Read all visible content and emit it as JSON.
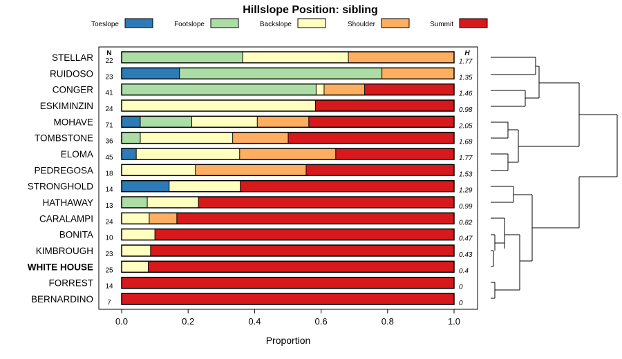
{
  "chart_data": {
    "type": "bar",
    "orientation": "horizontal",
    "stacked": true,
    "title": "Hillslope Position: sibling",
    "xlabel": "Proportion",
    "ylabel": "",
    "xlim": [
      0,
      1
    ],
    "x_ticks": [
      "0.0",
      "0.2",
      "0.4",
      "0.6",
      "0.8",
      "1.0"
    ],
    "legend_position": "top",
    "n_header": "N",
    "h_header": "H",
    "highlighted_category": "WHITE HOUSE",
    "series": [
      {
        "name": "Toeslope",
        "color": "#2c7bb6"
      },
      {
        "name": "Footslope",
        "color": "#abdda4"
      },
      {
        "name": "Backslope",
        "color": "#ffffbf"
      },
      {
        "name": "Shoulder",
        "color": "#fdae61"
      },
      {
        "name": "Summit",
        "color": "#d7191c"
      }
    ],
    "rows": [
      {
        "category": "STELLAR",
        "n": "22",
        "h": "1.77",
        "values": [
          0,
          0.364,
          0.318,
          0.318,
          0
        ]
      },
      {
        "category": "RUIDOSO",
        "n": "23",
        "h": "1.35",
        "values": [
          0.174,
          0.609,
          0,
          0.217,
          0
        ]
      },
      {
        "category": "CONGER",
        "n": "41",
        "h": "1.46",
        "values": [
          0,
          0.585,
          0.024,
          0.122,
          0.269
        ]
      },
      {
        "category": "ESKIMINZIN",
        "n": "24",
        "h": "0.98",
        "values": [
          0,
          0,
          0.583,
          0,
          0.417
        ]
      },
      {
        "category": "MOHAVE",
        "n": "71",
        "h": "2.05",
        "values": [
          0.056,
          0.155,
          0.197,
          0.155,
          0.437
        ]
      },
      {
        "category": "TOMBSTONE",
        "n": "36",
        "h": "1.68",
        "values": [
          0,
          0.056,
          0.278,
          0.167,
          0.5
        ]
      },
      {
        "category": "ELOMA",
        "n": "45",
        "h": "1.77",
        "values": [
          0.044,
          0.0,
          0.311,
          0.289,
          0.356
        ]
      },
      {
        "category": "PEDREGOSA",
        "n": "18",
        "h": "1.53",
        "values": [
          0,
          0,
          0.222,
          0.333,
          0.444
        ]
      },
      {
        "category": "STRONGHOLD",
        "n": "14",
        "h": "1.29",
        "values": [
          0.143,
          0,
          0.214,
          0,
          0.643
        ]
      },
      {
        "category": "HATHAWAY",
        "n": "13",
        "h": "0.99",
        "values": [
          0,
          0.077,
          0.154,
          0,
          0.769
        ]
      },
      {
        "category": "CARALAMPI",
        "n": "24",
        "h": "0.82",
        "values": [
          0,
          0,
          0.083,
          0.083,
          0.833
        ]
      },
      {
        "category": "BONITA",
        "n": "10",
        "h": "0.47",
        "values": [
          0,
          0,
          0.1,
          0,
          0.9
        ]
      },
      {
        "category": "KIMBROUGH",
        "n": "23",
        "h": "0.43",
        "values": [
          0,
          0,
          0.087,
          0,
          0.913
        ]
      },
      {
        "category": "WHITE HOUSE",
        "n": "25",
        "h": "0.4",
        "values": [
          0,
          0,
          0.08,
          0,
          0.92
        ]
      },
      {
        "category": "FORREST",
        "n": "14",
        "h": "0",
        "values": [
          0,
          0,
          0,
          0,
          1
        ]
      },
      {
        "category": "BERNARDINO",
        "n": "7",
        "h": "0",
        "values": [
          0,
          0,
          0,
          0,
          1
        ]
      }
    ]
  }
}
